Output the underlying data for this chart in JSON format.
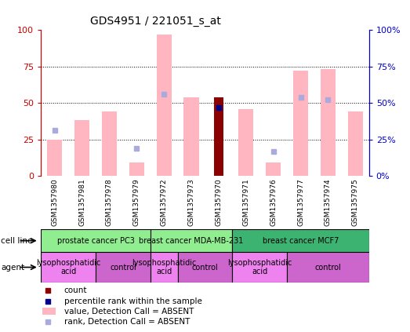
{
  "title": "GDS4951 / 221051_s_at",
  "samples": [
    "GSM1357980",
    "GSM1357981",
    "GSM1357978",
    "GSM1357979",
    "GSM1357972",
    "GSM1357973",
    "GSM1357970",
    "GSM1357971",
    "GSM1357976",
    "GSM1357977",
    "GSM1357974",
    "GSM1357975"
  ],
  "value_absent": [
    25,
    38,
    44,
    9,
    97,
    54,
    0,
    46,
    9,
    72,
    73,
    44
  ],
  "rank_absent": [
    31,
    0,
    0,
    19,
    56,
    0,
    0,
    0,
    17,
    54,
    52,
    0
  ],
  "count": [
    0,
    0,
    0,
    0,
    0,
    0,
    54,
    0,
    0,
    0,
    0,
    0
  ],
  "pct_rank": [
    0,
    0,
    0,
    0,
    0,
    0,
    47,
    0,
    0,
    0,
    0,
    0
  ],
  "cell_lines": [
    {
      "label": "prostate cancer PC3",
      "start": 0,
      "end": 4,
      "color": "#90EE90"
    },
    {
      "label": "breast cancer MDA-MB-231",
      "start": 4,
      "end": 7,
      "color": "#90EE90"
    },
    {
      "label": "breast cancer MCF7",
      "start": 7,
      "end": 12,
      "color": "#3CB371"
    }
  ],
  "agents": [
    {
      "label": "lysophosphatidic\nacid",
      "start": 0,
      "end": 2,
      "color": "#EE82EE"
    },
    {
      "label": "control",
      "start": 2,
      "end": 4,
      "color": "#CC66CC"
    },
    {
      "label": "lysophosphatidic\nacid",
      "start": 4,
      "end": 5,
      "color": "#EE82EE"
    },
    {
      "label": "control",
      "start": 5,
      "end": 7,
      "color": "#CC66CC"
    },
    {
      "label": "lysophosphatidic\nacid",
      "start": 7,
      "end": 9,
      "color": "#EE82EE"
    },
    {
      "label": "control",
      "start": 9,
      "end": 12,
      "color": "#CC66CC"
    }
  ],
  "ylim": [
    0,
    100
  ],
  "yticks": [
    0,
    25,
    50,
    75,
    100
  ],
  "color_value_absent": "#FFB6C1",
  "color_rank_absent": "#AAAADD",
  "color_count": "#8B0000",
  "color_pct_rank": "#00008B",
  "left_axis_color": "#CC0000",
  "right_axis_color": "#0000CC",
  "gray_color": "#C0C0C0",
  "bar_width": 0.55
}
